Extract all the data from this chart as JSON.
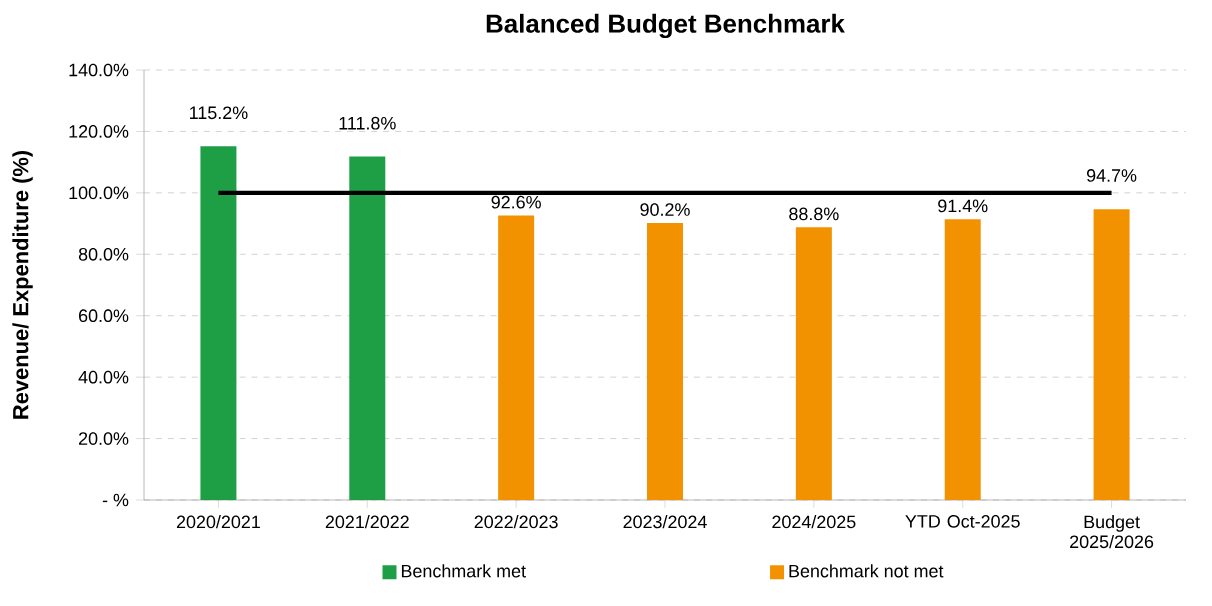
{
  "chart_data": {
    "type": "bar",
    "title": "Balanced Budget Benchmark",
    "ylabel": "Revenue/ Expenditure (%)",
    "categories": [
      "2020/2021",
      "2021/2022",
      "2022/2023",
      "2023/2024",
      "2024/2025",
      "YTD Oct-2025",
      "Budget 2025/2026"
    ],
    "series": [
      {
        "name": "Benchmark met",
        "color": "#1e9e45",
        "values": [
          115.2,
          111.8,
          null,
          null,
          null,
          null,
          null
        ],
        "value_labels": [
          "115.2%",
          "111.8%",
          null,
          null,
          null,
          null,
          null
        ]
      },
      {
        "name": "Benchmark not met",
        "color": "#f39200",
        "values": [
          null,
          null,
          92.6,
          90.2,
          88.8,
          91.4,
          94.7
        ],
        "value_labels": [
          null,
          null,
          "92.6%",
          "90.2%",
          "88.8%",
          "91.4%",
          "94.7%"
        ]
      },
      {
        "type": "line",
        "color": "#000000",
        "values": [
          100,
          100,
          100,
          100,
          100,
          100,
          100
        ],
        "marker": "none",
        "line_style": "solid"
      }
    ],
    "ylim": [
      0,
      140
    ],
    "yticks": [
      {
        "value": 0,
        "label": "- %"
      },
      {
        "value": 20,
        "label": "20.0%"
      },
      {
        "value": 40,
        "label": "40.0%"
      },
      {
        "value": 60,
        "label": "60.0%"
      },
      {
        "value": 80,
        "label": "80.0%"
      },
      {
        "value": 100,
        "label": "100.0%"
      },
      {
        "value": 120,
        "label": "120.0%"
      },
      {
        "value": 140,
        "label": "140.0%"
      }
    ],
    "grid": "y",
    "legend": "bottom"
  }
}
